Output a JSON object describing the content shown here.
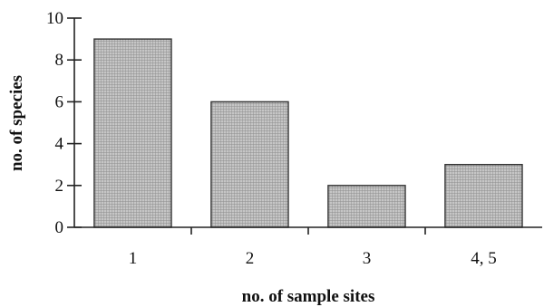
{
  "chart_data": {
    "type": "bar",
    "categories": [
      "1",
      "2",
      "3",
      "4, 5"
    ],
    "values": [
      9,
      6,
      2,
      3
    ],
    "xlabel": "no. of sample sites",
    "ylabel": "no. of species",
    "ylim": [
      0,
      10
    ],
    "yticks": [
      "0",
      "2",
      "4",
      "6",
      "8",
      "10"
    ],
    "grid": false,
    "legend": "none",
    "colors": {
      "bar_fill": "#bdbdbd",
      "bar_hatch": "#8a8a8a",
      "axis": "#222222"
    }
  }
}
